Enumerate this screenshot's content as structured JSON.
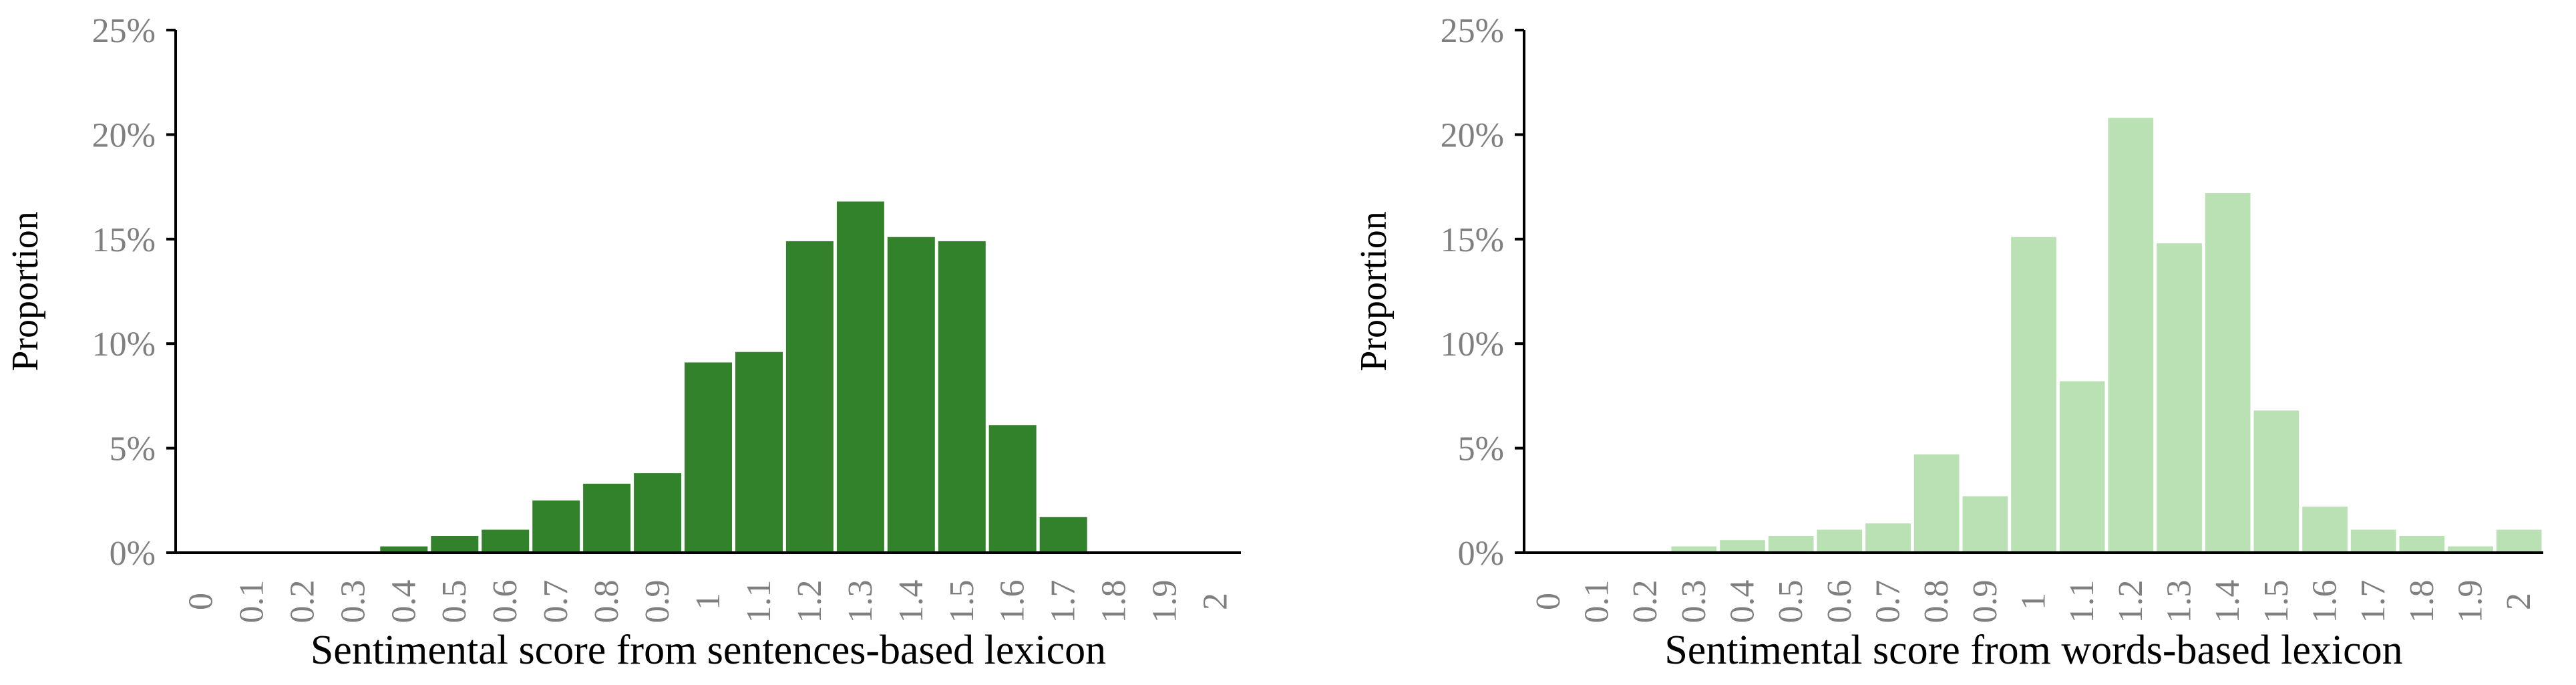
{
  "chart_data": [
    {
      "type": "bar",
      "xlabel": "Sentimental score from sentences-based lexicon",
      "ylabel": "Proportion",
      "categories": [
        "0",
        "0.1",
        "0.2",
        "0.3",
        "0.4",
        "0.5",
        "0.6",
        "0.7",
        "0.8",
        "0.9",
        "1",
        "1.1",
        "1.2",
        "1.3",
        "1.4",
        "1.5",
        "1.6",
        "1.7",
        "1.8",
        "1.9",
        "2"
      ],
      "values": [
        0,
        0,
        0,
        0,
        0.3,
        0.8,
        1.1,
        2.5,
        3.3,
        3.8,
        9.1,
        9.6,
        14.9,
        16.8,
        15.1,
        14.9,
        6.1,
        1.7,
        0,
        0,
        0
      ],
      "yticks": [
        "0%",
        "5%",
        "10%",
        "15%",
        "20%",
        "25%"
      ],
      "ylim": [
        0,
        25
      ],
      "bar_color": "#31822a",
      "grid": false,
      "legend": "none"
    },
    {
      "type": "bar",
      "xlabel": "Sentimental score from words-based lexicon",
      "ylabel": "Proportion",
      "categories": [
        "0",
        "0.1",
        "0.2",
        "0.3",
        "0.4",
        "0.5",
        "0.6",
        "0.7",
        "0.8",
        "0.9",
        "1",
        "1.1",
        "1.2",
        "1.3",
        "1.4",
        "1.5",
        "1.6",
        "1.7",
        "1.8",
        "1.9",
        "2"
      ],
      "values": [
        0,
        0,
        0,
        0.3,
        0.6,
        0.8,
        1.1,
        1.4,
        4.7,
        2.7,
        15.1,
        8.2,
        20.8,
        14.8,
        17.2,
        6.8,
        2.2,
        1.1,
        0.8,
        0.3,
        1.1
      ],
      "yticks": [
        "0%",
        "5%",
        "10%",
        "15%",
        "20%",
        "25%"
      ],
      "ylim": [
        0,
        25
      ],
      "bar_color": "#b9e1b4",
      "grid": false,
      "legend": "none"
    }
  ]
}
